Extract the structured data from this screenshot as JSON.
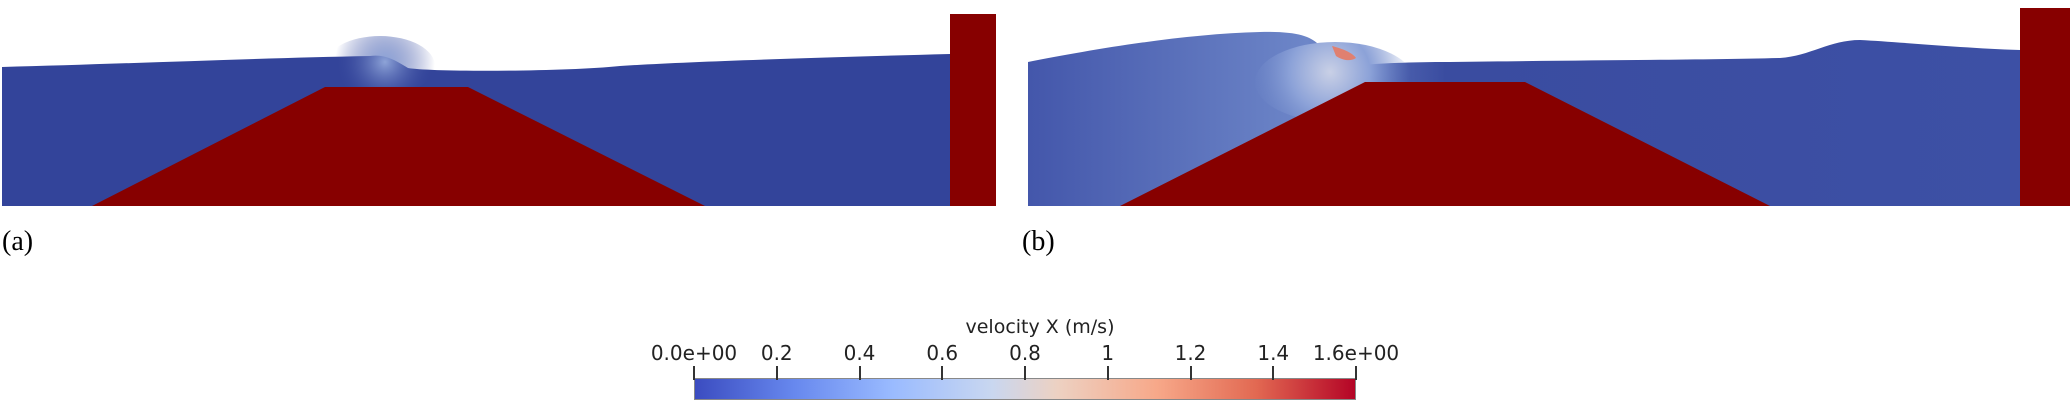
{
  "panels": [
    {
      "label": "(a)"
    },
    {
      "label": "(b)"
    }
  ],
  "colorbar": {
    "title": "velocity X (m/s)",
    "min": 0.0,
    "max": 1.6,
    "ticks": [
      {
        "value": 0.0,
        "label": "0.0e+00"
      },
      {
        "value": 0.2,
        "label": "0.2"
      },
      {
        "value": 0.4,
        "label": "0.4"
      },
      {
        "value": 0.6,
        "label": "0.6"
      },
      {
        "value": 0.8,
        "label": "0.8"
      },
      {
        "value": 1.0,
        "label": "1"
      },
      {
        "value": 1.2,
        "label": "1.2"
      },
      {
        "value": 1.4,
        "label": "1.4"
      },
      {
        "value": 1.6,
        "label": "1.6e+00"
      }
    ],
    "colors": {
      "low": "#3b4cc0",
      "mid": "#dddddd",
      "high": "#b40426",
      "solid": "#870000",
      "water": "#33449a"
    }
  }
}
